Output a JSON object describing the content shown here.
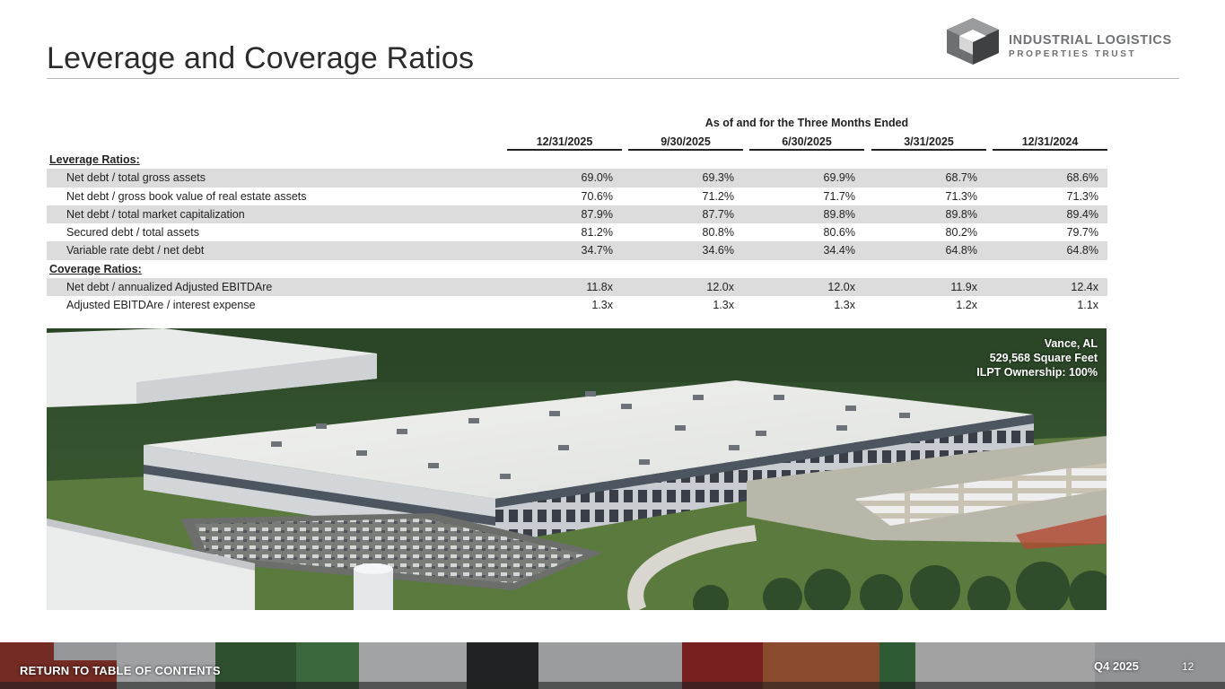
{
  "page": {
    "title": "Leverage and Coverage Ratios"
  },
  "logo": {
    "line1": "INDUSTRIAL LOGISTICS",
    "line2": "PROPERTIES TRUST"
  },
  "table": {
    "period_header": "As of and for the Three Months Ended",
    "columns": [
      "12/31/2025",
      "9/30/2025",
      "6/30/2025",
      "3/31/2025",
      "12/31/2024"
    ],
    "rows": [
      {
        "type": "section",
        "label": "Leverage Ratios:",
        "values": []
      },
      {
        "type": "data",
        "shade": true,
        "label": "Net debt / total gross assets",
        "values": [
          "69.0%",
          "69.3%",
          "69.9%",
          "68.7%",
          "68.6%"
        ]
      },
      {
        "type": "data",
        "shade": false,
        "label": "Net debt / gross book value of real estate assets",
        "values": [
          "70.6%",
          "71.2%",
          "71.7%",
          "71.3%",
          "71.3%"
        ]
      },
      {
        "type": "data",
        "shade": true,
        "label": "Net debt / total market capitalization",
        "values": [
          "87.9%",
          "87.7%",
          "89.8%",
          "89.8%",
          "89.4%"
        ]
      },
      {
        "type": "data",
        "shade": false,
        "label": "Secured debt / total assets",
        "values": [
          "81.2%",
          "80.8%",
          "80.6%",
          "80.2%",
          "79.7%"
        ]
      },
      {
        "type": "data",
        "shade": true,
        "label": "Variable rate debt / net debt",
        "values": [
          "34.7%",
          "34.6%",
          "34.4%",
          "64.8%",
          "64.8%"
        ]
      },
      {
        "type": "section",
        "label": "Coverage Ratios:",
        "values": []
      },
      {
        "type": "data",
        "shade": true,
        "label": "Net debt / annualized Adjusted EBITDAre",
        "values": [
          "11.8x",
          "12.0x",
          "12.0x",
          "11.9x",
          "12.4x"
        ]
      },
      {
        "type": "data",
        "shade": false,
        "label": "Adjusted EBITDAre / interest expense",
        "values": [
          "1.3x",
          "1.3x",
          "1.3x",
          "1.2x",
          "1.1x"
        ]
      }
    ]
  },
  "photo": {
    "caption_line1": "Vance, AL",
    "caption_line2": "529,568 Square Feet",
    "caption_line3": "ILPT Ownership: 100%"
  },
  "footer": {
    "link_label": "RETURN TO TABLE OF CONTENTS",
    "period": "Q4 2025",
    "page_number": "12"
  }
}
